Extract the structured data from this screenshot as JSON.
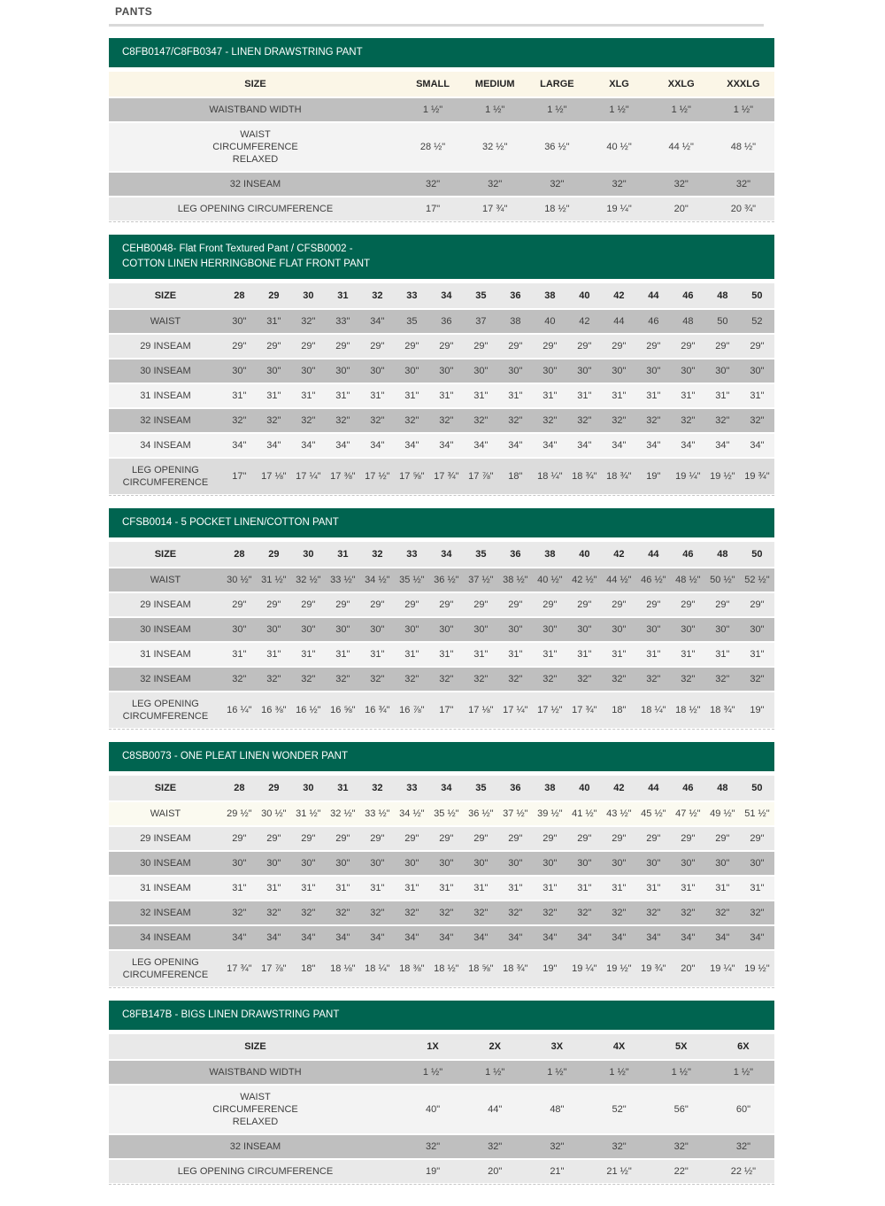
{
  "page": {
    "title": "PANTS"
  },
  "colors": {
    "brand_green": "#006450",
    "row_dark": "#bfbfbf",
    "row_light": "#e9e9e9",
    "row_lighter": "#f3f3f3",
    "row_mid": "#dcdcdc",
    "row_cream": "#fbf6e7",
    "row_white": "#fbfaf0",
    "rule_gray": "#d9d9d9"
  },
  "tables": [
    {
      "id": "linen-drawstring-pant",
      "title_lines": [
        "C8FB0147/C8FB0347 - LINEN DRAWSTRING PANT"
      ],
      "layout": "wide",
      "size_label": "SIZE",
      "header_row_bg": "cream",
      "columns": [
        "SMALL",
        "MEDIUM",
        "LARGE",
        "XLG",
        "XXLG",
        "XXXLG"
      ],
      "rows": [
        {
          "label": "WAISTBAND WIDTH",
          "bg": "dark",
          "values": [
            "1 ½\"",
            "1 ½\"",
            "1 ½\"",
            "1 ½\"",
            "1 ½\"",
            "1 ½\""
          ]
        },
        {
          "label": "WAIST\nCIRCUMFERENCE\nRELAXED",
          "bg": "lighter",
          "values": [
            "28 ½\"",
            "32 ½\"",
            "36 ½\"",
            "40 ½\"",
            "44 ½\"",
            "48 ½\""
          ]
        },
        {
          "label": "32 INSEAM",
          "bg": "dark",
          "values": [
            "32\"",
            "32\"",
            "32\"",
            "32\"",
            "32\"",
            "32\""
          ]
        },
        {
          "label": "LEG OPENING CIRCUMFERENCE",
          "bg": "light",
          "values": [
            "17\"",
            "17 ¾\"",
            "18 ½\"",
            "19 ¼\"",
            "20\"",
            "20 ¾\""
          ]
        }
      ]
    },
    {
      "id": "flat-front-textured-herringbone-pant",
      "title_lines": [
        "CEHB0048- Flat Front Textured Pant / CFSB0002 -",
        "COTTON LINEN HERRINGBONE FLAT FRONT PANT"
      ],
      "layout": "narrow",
      "size_label": "SIZE",
      "header_row_bg": "light",
      "columns": [
        "28",
        "29",
        "30",
        "31",
        "32",
        "33",
        "34",
        "35",
        "36",
        "38",
        "40",
        "42",
        "44",
        "46",
        "48",
        "50"
      ],
      "rows": [
        {
          "label": "WAIST",
          "bg": "dark",
          "values": [
            "30\"",
            "31\"",
            "32\"",
            "33\"",
            "34\"",
            "35",
            "36",
            "37",
            "38",
            "40",
            "42",
            "44",
            "46",
            "48",
            "50",
            "52"
          ]
        },
        {
          "label": "29 INSEAM",
          "bg": "light",
          "values": [
            "29\"",
            "29\"",
            "29\"",
            "29\"",
            "29\"",
            "29\"",
            "29\"",
            "29\"",
            "29\"",
            "29\"",
            "29\"",
            "29\"",
            "29\"",
            "29\"",
            "29\"",
            "29\""
          ]
        },
        {
          "label": "30 INSEAM",
          "bg": "dark",
          "values": [
            "30\"",
            "30\"",
            "30\"",
            "30\"",
            "30\"",
            "30\"",
            "30\"",
            "30\"",
            "30\"",
            "30\"",
            "30\"",
            "30\"",
            "30\"",
            "30\"",
            "30\"",
            "30\""
          ]
        },
        {
          "label": "31 INSEAM",
          "bg": "lighter",
          "values": [
            "31\"",
            "31\"",
            "31\"",
            "31\"",
            "31\"",
            "31\"",
            "31\"",
            "31\"",
            "31\"",
            "31\"",
            "31\"",
            "31\"",
            "31\"",
            "31\"",
            "31\"",
            "31\""
          ]
        },
        {
          "label": "32 INSEAM",
          "bg": "dark",
          "values": [
            "32\"",
            "32\"",
            "32\"",
            "32\"",
            "32\"",
            "32\"",
            "32\"",
            "32\"",
            "32\"",
            "32\"",
            "32\"",
            "32\"",
            "32\"",
            "32\"",
            "32\"",
            "32\""
          ]
        },
        {
          "label": "34 INSEAM",
          "bg": "lighter",
          "values": [
            "34\"",
            "34\"",
            "34\"",
            "34\"",
            "34\"",
            "34\"",
            "34\"",
            "34\"",
            "34\"",
            "34\"",
            "34\"",
            "34\"",
            "34\"",
            "34\"",
            "34\"",
            "34\""
          ]
        },
        {
          "label": "LEG OPENING\nCIRCUMFERENCE",
          "bg": "mid",
          "values": [
            "17\"",
            "17 ⅛\"",
            "17 ¼\"",
            "17 ⅜\"",
            "17 ½\"",
            "17 ⅝\"",
            "17 ¾\"",
            "17 ⅞\"",
            "18\"",
            "18 ¼\"",
            "18 ¾\"",
            "18 ¾\"",
            "19\"",
            "19 ¼\"",
            "19 ½\"",
            "19 ¾\""
          ]
        }
      ]
    },
    {
      "id": "5-pocket-linen-cotton-pant",
      "title_lines": [
        "CFSB0014 - 5 POCKET LINEN/COTTON PANT"
      ],
      "layout": "narrow",
      "size_label": "SIZE",
      "header_row_bg": "light",
      "columns": [
        "28",
        "29",
        "30",
        "31",
        "32",
        "33",
        "34",
        "35",
        "36",
        "38",
        "40",
        "42",
        "44",
        "46",
        "48",
        "50"
      ],
      "rows": [
        {
          "label": "WAIST",
          "bg": "dark",
          "values": [
            "30 ½\"",
            "31 ½\"",
            "32 ½\"",
            "33 ½\"",
            "34 ½\"",
            "35 ½\"",
            "36 ½\"",
            "37 ½\"",
            "38 ½\"",
            "40 ½\"",
            "42 ½\"",
            "44 ½\"",
            "46 ½\"",
            "48 ½\"",
            "50 ½\"",
            "52 ½\""
          ]
        },
        {
          "label": "29 INSEAM",
          "bg": "light",
          "values": [
            "29\"",
            "29\"",
            "29\"",
            "29\"",
            "29\"",
            "29\"",
            "29\"",
            "29\"",
            "29\"",
            "29\"",
            "29\"",
            "29\"",
            "29\"",
            "29\"",
            "29\"",
            "29\""
          ]
        },
        {
          "label": "30 INSEAM",
          "bg": "dark",
          "values": [
            "30\"",
            "30\"",
            "30\"",
            "30\"",
            "30\"",
            "30\"",
            "30\"",
            "30\"",
            "30\"",
            "30\"",
            "30\"",
            "30\"",
            "30\"",
            "30\"",
            "30\"",
            "30\""
          ]
        },
        {
          "label": "31 INSEAM",
          "bg": "lighter",
          "values": [
            "31\"",
            "31\"",
            "31\"",
            "31\"",
            "31\"",
            "31\"",
            "31\"",
            "31\"",
            "31\"",
            "31\"",
            "31\"",
            "31\"",
            "31\"",
            "31\"",
            "31\"",
            "31\""
          ]
        },
        {
          "label": "32 INSEAM",
          "bg": "dark",
          "values": [
            "32\"",
            "32\"",
            "32\"",
            "32\"",
            "32\"",
            "32\"",
            "32\"",
            "32\"",
            "32\"",
            "32\"",
            "32\"",
            "32\"",
            "32\"",
            "32\"",
            "32\"",
            "32\""
          ]
        },
        {
          "label": "LEG OPENING\nCIRCUMFERENCE",
          "bg": "light",
          "values": [
            "16 ¼\"",
            "16 ⅜\"",
            "16 ½\"",
            "16 ⅝\"",
            "16 ¾\"",
            "16 ⅞\"",
            "17\"",
            "17 ⅛\"",
            "17 ¼\"",
            "17 ½\"",
            "17 ¾\"",
            "18\"",
            "18 ¼\"",
            "18 ½\"",
            "18 ¾\"",
            "19\""
          ]
        }
      ]
    },
    {
      "id": "one-pleat-linen-wonder-pant",
      "title_lines": [
        "C8SB0073 - ONE PLEAT LINEN WONDER PANT"
      ],
      "layout": "narrow",
      "size_label": "SIZE",
      "header_row_bg": "light",
      "columns": [
        "28",
        "29",
        "30",
        "31",
        "32",
        "33",
        "34",
        "35",
        "36",
        "38",
        "40",
        "42",
        "44",
        "46",
        "48",
        "50"
      ],
      "rows": [
        {
          "label": "WAIST",
          "bg": "white",
          "values": [
            "29 ½\"",
            "30 ½\"",
            "31 ½\"",
            "32 ½\"",
            "33 ½\"",
            "34 ½\"",
            "35 ½\"",
            "36 ½\"",
            "37 ½\"",
            "39 ½\"",
            "41 ½\"",
            "43 ½\"",
            "45 ½\"",
            "47 ½\"",
            "49 ½\"",
            "51 ½\""
          ]
        },
        {
          "label": "29 INSEAM",
          "bg": "light",
          "values": [
            "29\"",
            "29\"",
            "29\"",
            "29\"",
            "29\"",
            "29\"",
            "29\"",
            "29\"",
            "29\"",
            "29\"",
            "29\"",
            "29\"",
            "29\"",
            "29\"",
            "29\"",
            "29\""
          ]
        },
        {
          "label": "30 INSEAM",
          "bg": "dark",
          "values": [
            "30\"",
            "30\"",
            "30\"",
            "30\"",
            "30\"",
            "30\"",
            "30\"",
            "30\"",
            "30\"",
            "30\"",
            "30\"",
            "30\"",
            "30\"",
            "30\"",
            "30\"",
            "30\""
          ]
        },
        {
          "label": "31 INSEAM",
          "bg": "lighter",
          "values": [
            "31\"",
            "31\"",
            "31\"",
            "31\"",
            "31\"",
            "31\"",
            "31\"",
            "31\"",
            "31\"",
            "31\"",
            "31\"",
            "31\"",
            "31\"",
            "31\"",
            "31\"",
            "31\""
          ]
        },
        {
          "label": "32 INSEAM",
          "bg": "dark",
          "values": [
            "32\"",
            "32\"",
            "32\"",
            "32\"",
            "32\"",
            "32\"",
            "32\"",
            "32\"",
            "32\"",
            "32\"",
            "32\"",
            "32\"",
            "32\"",
            "32\"",
            "32\"",
            "32\""
          ]
        },
        {
          "label": "34 INSEAM",
          "bg": "dark",
          "values": [
            "34\"",
            "34\"",
            "34\"",
            "34\"",
            "34\"",
            "34\"",
            "34\"",
            "34\"",
            "34\"",
            "34\"",
            "34\"",
            "34\"",
            "34\"",
            "34\"",
            "34\"",
            "34\""
          ]
        },
        {
          "label": "LEG OPENING\nCIRCUMFERENCE",
          "bg": "light",
          "values": [
            "17 ¾\"",
            "17 ⅞\"",
            "18\"",
            "18 ⅛\"",
            "18 ¼\"",
            "18 ⅜\"",
            "18 ½\"",
            "18 ⅝\"",
            "18 ¾\"",
            "19\"",
            "19 ¼\"",
            "19 ½\"",
            "19 ¾\"",
            "20\"",
            "19 ¼\"",
            "19 ½\""
          ]
        }
      ]
    },
    {
      "id": "bigs-linen-drawstring-pant",
      "title_lines": [
        "C8FB147B - BIGS LINEN DRAWSTRING PANT"
      ],
      "layout": "wide",
      "size_label": "SIZE",
      "header_row_bg": "light",
      "columns": [
        "1X",
        "2X",
        "3X",
        "4X",
        "5X",
        "6X"
      ],
      "rows": [
        {
          "label": "WAISTBAND WIDTH",
          "bg": "dark",
          "values": [
            "1 ½\"",
            "1 ½\"",
            "1 ½\"",
            "1 ½\"",
            "1 ½\"",
            "1 ½\""
          ]
        },
        {
          "label": "WAIST\nCIRCUMFERENCE\nRELAXED",
          "bg": "lighter",
          "values": [
            "40\"",
            "44\"",
            "48\"",
            "52\"",
            "56\"",
            "60\""
          ]
        },
        {
          "label": "32 INSEAM",
          "bg": "dark",
          "values": [
            "32\"",
            "32\"",
            "32\"",
            "32\"",
            "32\"",
            "32\""
          ]
        },
        {
          "label": "LEG OPENING CIRCUMFERENCE",
          "bg": "light",
          "values": [
            "19\"",
            "20\"",
            "21\"",
            "21 ½\"",
            "22\"",
            "22 ½\""
          ]
        }
      ]
    }
  ]
}
